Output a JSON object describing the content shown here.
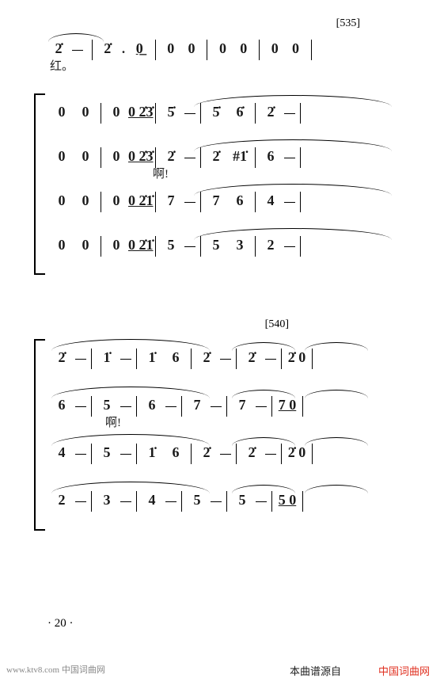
{
  "page_number_text": "· 20 ·",
  "rehearsal_marks": {
    "m535": "[535]",
    "m540": "[540]"
  },
  "lyrics": {
    "hong": "红。",
    "a1": "啊!",
    "a2": "啊!"
  },
  "system1": {
    "row0": {
      "cells": [
        "2̇",
        "–",
        "|",
        "2̇",
        ".",
        "0̲",
        "|",
        "0",
        "0",
        "|",
        "0",
        "0",
        "|",
        "0",
        "0",
        "|"
      ]
    },
    "row1": {
      "cells": [
        "0",
        "0",
        "|",
        "0",
        "0̲ 2̇3̇",
        "|",
        "5̇",
        "–",
        "|",
        "5̇",
        "6̇",
        "|",
        "2̇",
        "–",
        "|"
      ]
    },
    "row2": {
      "cells": [
        "0",
        "0",
        "|",
        "0",
        "0̲ 2̇3̇",
        "|",
        "2̇",
        "–",
        "|",
        "2̇",
        "#1̇",
        "|",
        "6",
        "–",
        "|"
      ]
    },
    "row3": {
      "cells": [
        "0",
        "0",
        "|",
        "0",
        "0̲ 2̇1̇",
        "|",
        "7",
        "–",
        "|",
        "7",
        "6",
        "|",
        "4",
        "–",
        "|"
      ]
    },
    "row4": {
      "cells": [
        "0",
        "0",
        "|",
        "0",
        "0̲ 2̇1̇",
        "|",
        "5",
        "–",
        "|",
        "5",
        "3",
        "|",
        "2",
        "–",
        "|"
      ]
    }
  },
  "system2": {
    "row0": {
      "cells": [
        "2̇",
        "–",
        "|",
        "1̇",
        "–",
        "|",
        "1̇",
        "6",
        "|",
        "2̇",
        "–",
        "|",
        "2̇",
        "–",
        "|",
        "2̇ 0",
        "|"
      ]
    },
    "row1": {
      "cells": [
        "6",
        "–",
        "|",
        "5",
        "–",
        "|",
        "6",
        "–",
        "|",
        "7",
        "–",
        "|",
        "7",
        "–",
        "|",
        "7̲ 0",
        "|"
      ]
    },
    "row2": {
      "cells": [
        "4",
        "–",
        "|",
        "5",
        "–",
        "|",
        "1̇",
        "6",
        "|",
        "2̇",
        "–",
        "|",
        "2̇",
        "–",
        "|",
        "2̇ 0",
        "|"
      ]
    },
    "row3": {
      "cells": [
        "2",
        "–",
        "|",
        "3",
        "–",
        "|",
        "4",
        "–",
        "|",
        "5",
        "–",
        "|",
        "5",
        "–",
        "|",
        "5̲ 0",
        "|"
      ]
    }
  },
  "footer": {
    "left": "www.ktv8.com 中国词曲网",
    "mid": "本曲谱源自",
    "right": "中国词曲网"
  },
  "colors": {
    "ink": "#1a1a1a",
    "accent": "#e03020",
    "faded": "#888888",
    "bg": "#ffffff"
  }
}
